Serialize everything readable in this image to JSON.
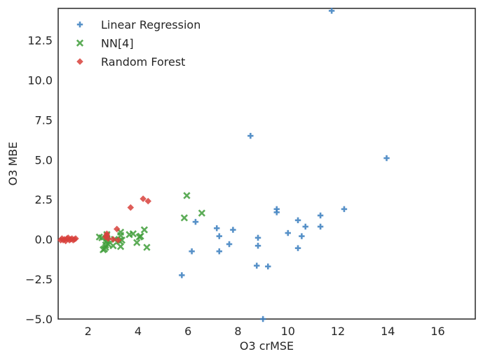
{
  "chart_data": {
    "type": "scatter",
    "xlabel": "O3 crMSE",
    "ylabel": "O3 MBE",
    "xlim": [
      0.8,
      17.5
    ],
    "ylim": [
      -5.0,
      14.5
    ],
    "x_ticks": [
      2,
      4,
      6,
      8,
      10,
      12,
      14,
      16
    ],
    "x_tick_labels": [
      "2",
      "4",
      "6",
      "8",
      "10",
      "12",
      "14",
      "16"
    ],
    "y_ticks": [
      -5.0,
      -2.5,
      0.0,
      2.5,
      5.0,
      7.5,
      10.0,
      12.5
    ],
    "y_tick_labels": [
      "−5.0",
      "−2.5",
      "0.0",
      "2.5",
      "5.0",
      "7.5",
      "10.0",
      "12.5"
    ],
    "grid": false,
    "legend_position": "top-left",
    "series": [
      {
        "name": "Linear Regression",
        "marker": "plus",
        "color": "#3a7ebf",
        "points": [
          [
            11.75,
            14.35
          ],
          [
            8.5,
            6.5
          ],
          [
            13.95,
            5.1
          ],
          [
            12.25,
            1.9
          ],
          [
            9.55,
            1.9
          ],
          [
            9.55,
            1.7
          ],
          [
            11.3,
            1.5
          ],
          [
            10.4,
            1.2
          ],
          [
            6.3,
            1.1
          ],
          [
            10.7,
            0.8
          ],
          [
            11.3,
            0.8
          ],
          [
            7.15,
            0.7
          ],
          [
            7.8,
            0.6
          ],
          [
            10.0,
            0.4
          ],
          [
            7.25,
            0.2
          ],
          [
            10.55,
            0.2
          ],
          [
            8.8,
            0.1
          ],
          [
            7.65,
            -0.3
          ],
          [
            8.8,
            -0.4
          ],
          [
            10.4,
            -0.55
          ],
          [
            6.15,
            -0.75
          ],
          [
            7.25,
            -0.75
          ],
          [
            8.75,
            -1.65
          ],
          [
            9.2,
            -1.7
          ],
          [
            5.75,
            -2.25
          ],
          [
            9.0,
            -5.0
          ]
        ]
      },
      {
        "name": "NN[4]",
        "marker": "x",
        "color": "#3f9e3a",
        "points": [
          [
            5.95,
            2.75
          ],
          [
            6.55,
            1.65
          ],
          [
            5.85,
            1.35
          ],
          [
            4.25,
            0.6
          ],
          [
            3.3,
            0.45
          ],
          [
            3.8,
            0.35
          ],
          [
            3.65,
            0.3
          ],
          [
            2.75,
            0.3
          ],
          [
            3.3,
            0.25
          ],
          [
            4.1,
            0.2
          ],
          [
            4.05,
            0.15
          ],
          [
            2.45,
            0.15
          ],
          [
            2.55,
            0.1
          ],
          [
            2.75,
            0.05
          ],
          [
            3.05,
            0.0
          ],
          [
            3.35,
            -0.05
          ],
          [
            3.25,
            -0.1
          ],
          [
            2.75,
            -0.1
          ],
          [
            3.95,
            -0.2
          ],
          [
            2.8,
            -0.3
          ],
          [
            2.7,
            -0.35
          ],
          [
            3.0,
            -0.4
          ],
          [
            3.3,
            -0.45
          ],
          [
            4.35,
            -0.5
          ],
          [
            2.7,
            -0.5
          ],
          [
            2.65,
            -0.6
          ],
          [
            2.6,
            -0.65
          ]
        ]
      },
      {
        "name": "Random Forest",
        "marker": "diamond",
        "color": "#d9413c",
        "points": [
          [
            4.2,
            2.55
          ],
          [
            4.4,
            2.4
          ],
          [
            3.7,
            2.0
          ],
          [
            3.15,
            0.65
          ],
          [
            2.75,
            0.35
          ],
          [
            2.75,
            0.25
          ],
          [
            2.7,
            0.15
          ],
          [
            2.8,
            0.05
          ],
          [
            3.0,
            0.0
          ],
          [
            3.2,
            -0.05
          ],
          [
            0.95,
            0.05
          ],
          [
            1.05,
            0.0
          ],
          [
            1.15,
            0.05
          ],
          [
            1.25,
            -0.05
          ],
          [
            1.35,
            0.05
          ],
          [
            1.45,
            0.0
          ],
          [
            0.9,
            -0.05
          ],
          [
            1.1,
            -0.1
          ],
          [
            1.2,
            0.1
          ],
          [
            1.3,
            0.0
          ],
          [
            1.4,
            -0.05
          ],
          [
            1.0,
            -0.05
          ],
          [
            1.5,
            0.05
          ]
        ]
      }
    ]
  }
}
